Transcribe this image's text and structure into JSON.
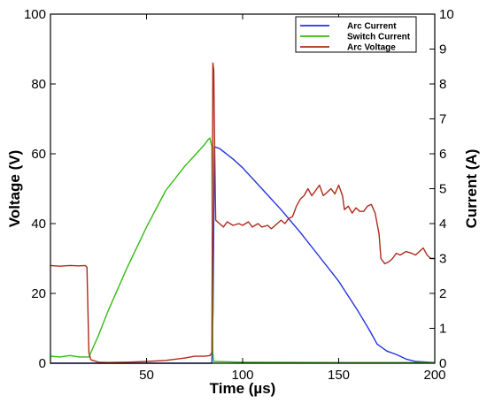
{
  "chart_data": {
    "type": "line",
    "xlabel": "Time (µs)",
    "ylabel_left": "Voltage (V)",
    "ylabel_right": "Current (A)",
    "xlim": [
      0,
      200
    ],
    "ylim_left": [
      0,
      100
    ],
    "ylim_right": [
      0,
      10
    ],
    "x_ticks": [
      50,
      100,
      150,
      200
    ],
    "y_left_ticks": [
      0,
      20,
      40,
      60,
      80,
      100
    ],
    "y_right_ticks": [
      0,
      1,
      2,
      3,
      4,
      5,
      6,
      7,
      8,
      9,
      10
    ],
    "grid": false,
    "legend_position": "top-right",
    "series": [
      {
        "name": "Arc Current",
        "axis": "right",
        "color": "#2233dd",
        "points": [
          [
            0,
            0
          ],
          [
            84,
            0
          ],
          [
            84.6,
            1.5
          ],
          [
            85.3,
            6.2
          ],
          [
            88,
            6.15
          ],
          [
            95,
            5.85
          ],
          [
            100,
            5.6
          ],
          [
            110,
            5.0
          ],
          [
            120,
            4.4
          ],
          [
            130,
            3.75
          ],
          [
            140,
            3.05
          ],
          [
            150,
            2.35
          ],
          [
            160,
            1.5
          ],
          [
            166,
            0.95
          ],
          [
            170,
            0.55
          ],
          [
            175,
            0.35
          ],
          [
            180,
            0.25
          ],
          [
            185,
            0.12
          ],
          [
            190,
            0.05
          ],
          [
            200,
            0.02
          ]
        ]
      },
      {
        "name": "Switch Current",
        "axis": "right",
        "color": "#33bb11",
        "points": [
          [
            0,
            0.2
          ],
          [
            5,
            0.18
          ],
          [
            10,
            0.22
          ],
          [
            15,
            0.18
          ],
          [
            20,
            0.18
          ],
          [
            25,
            0.8
          ],
          [
            30,
            1.5
          ],
          [
            40,
            2.75
          ],
          [
            50,
            3.9
          ],
          [
            60,
            4.95
          ],
          [
            70,
            5.65
          ],
          [
            80,
            6.25
          ],
          [
            82,
            6.4
          ],
          [
            83,
            6.45
          ],
          [
            84,
            6.2
          ],
          [
            84.5,
            0.3
          ],
          [
            85,
            0.05
          ],
          [
            100,
            0.03
          ],
          [
            150,
            0.02
          ],
          [
            200,
            0.02
          ]
        ]
      },
      {
        "name": "Arc Voltage",
        "axis": "left",
        "color": "#b02a1a",
        "points": [
          [
            0,
            28
          ],
          [
            5,
            27.8
          ],
          [
            10,
            28
          ],
          [
            15,
            27.9
          ],
          [
            18,
            28
          ],
          [
            19,
            27.5
          ],
          [
            20,
            3
          ],
          [
            21,
            1
          ],
          [
            25,
            0.3
          ],
          [
            30,
            0.2
          ],
          [
            40,
            0.3
          ],
          [
            50,
            0.5
          ],
          [
            60,
            0.8
          ],
          [
            70,
            1.5
          ],
          [
            75,
            2
          ],
          [
            80,
            2
          ],
          [
            83,
            2.2
          ],
          [
            84,
            3
          ],
          [
            84.5,
            86
          ],
          [
            85,
            84
          ],
          [
            85.5,
            60
          ],
          [
            86,
            41
          ],
          [
            88,
            40
          ],
          [
            90,
            39
          ],
          [
            92,
            40.5
          ],
          [
            95,
            39.5
          ],
          [
            98,
            40
          ],
          [
            100,
            39.5
          ],
          [
            103,
            40.5
          ],
          [
            105,
            39
          ],
          [
            108,
            40
          ],
          [
            110,
            39
          ],
          [
            113,
            39.5
          ],
          [
            115,
            38.5
          ],
          [
            118,
            40
          ],
          [
            120,
            41
          ],
          [
            122,
            40
          ],
          [
            124,
            41.5
          ],
          [
            126,
            42
          ],
          [
            128,
            45
          ],
          [
            130,
            47
          ],
          [
            132,
            48
          ],
          [
            134,
            50
          ],
          [
            136,
            48
          ],
          [
            138,
            49.5
          ],
          [
            140,
            51
          ],
          [
            142,
            48
          ],
          [
            144,
            49
          ],
          [
            146,
            50
          ],
          [
            148,
            48.5
          ],
          [
            150,
            51
          ],
          [
            152,
            48
          ],
          [
            153,
            44
          ],
          [
            155,
            45
          ],
          [
            157,
            43
          ],
          [
            159,
            44.5
          ],
          [
            161,
            43.5
          ],
          [
            163,
            43.5
          ],
          [
            165,
            45
          ],
          [
            167,
            45.5
          ],
          [
            169,
            43
          ],
          [
            170,
            40
          ],
          [
            171,
            37
          ],
          [
            172,
            30
          ],
          [
            174,
            28.5
          ],
          [
            176,
            29
          ],
          [
            178,
            30
          ],
          [
            180,
            31.5
          ],
          [
            182,
            31
          ],
          [
            185,
            32
          ],
          [
            188,
            31.5
          ],
          [
            190,
            31
          ],
          [
            192,
            32
          ],
          [
            194,
            33
          ],
          [
            196,
            31
          ],
          [
            198,
            30
          ],
          [
            200,
            30
          ]
        ]
      }
    ]
  }
}
